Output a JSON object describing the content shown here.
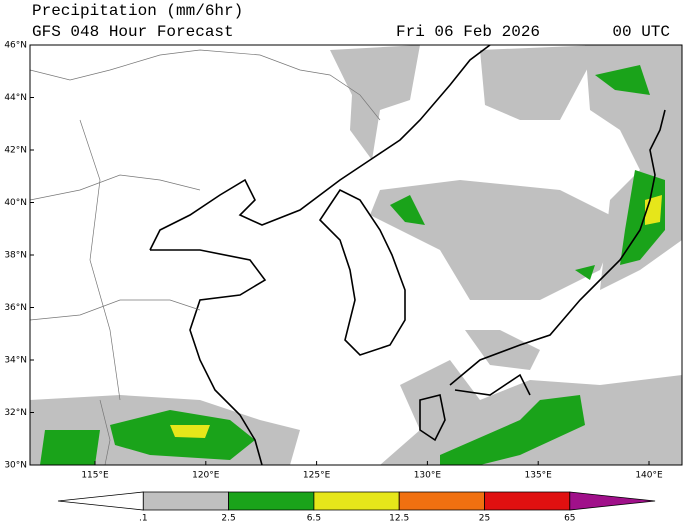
{
  "header": {
    "title": "Precipitation (mm/6hr)",
    "subtitle": "GFS 048 Hour Forecast",
    "valid": "Fri 06 Feb 2026",
    "time": "00 UTC"
  },
  "map": {
    "lat_labels": [
      "46°N",
      "44°N",
      "42°N",
      "40°N",
      "38°N",
      "36°N",
      "34°N",
      "32°N",
      "30°N"
    ],
    "lon_labels": [
      "115°E",
      "120°E",
      "125°E",
      "130°E",
      "135°E",
      "140°E"
    ]
  },
  "colorbar": {
    "labels": [
      ".1",
      "2.5",
      "6.5",
      "12.5",
      "25",
      "65"
    ],
    "colors": [
      "#ffffff",
      "#c0c0c0",
      "#1aa31a",
      "#e6e61a",
      "#f07010",
      "#e01010",
      "#a0108a"
    ]
  }
}
